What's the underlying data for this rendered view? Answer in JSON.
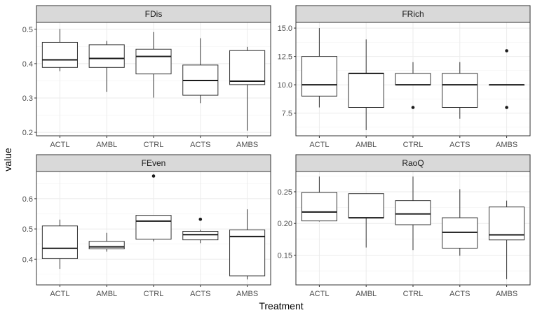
{
  "chart_data": {
    "type": "boxplot",
    "layout": "facet-grid-2x2",
    "xlabel": "Treatment",
    "ylabel": "value",
    "categories": [
      "ACTL",
      "AMBL",
      "CTRL",
      "ACTS",
      "AMBS"
    ],
    "grid": true,
    "panels": [
      {
        "title": "FDis",
        "ylim": [
          0.19,
          0.52
        ],
        "yticks": [
          0.2,
          0.3,
          0.4,
          0.5
        ],
        "ytick_labels": [
          "0.2",
          "0.3",
          "0.4",
          "0.5"
        ],
        "boxes": [
          {
            "category": "ACTL",
            "min": 0.378,
            "q1": 0.389,
            "median": 0.411,
            "q3": 0.462,
            "max": 0.501,
            "outliers": []
          },
          {
            "category": "AMBL",
            "min": 0.318,
            "q1": 0.389,
            "median": 0.415,
            "q3": 0.455,
            "max": 0.466,
            "outliers": []
          },
          {
            "category": "CTRL",
            "min": 0.301,
            "q1": 0.37,
            "median": 0.421,
            "q3": 0.442,
            "max": 0.492,
            "outliers": []
          },
          {
            "category": "ACTS",
            "min": 0.285,
            "q1": 0.308,
            "median": 0.351,
            "q3": 0.396,
            "max": 0.474,
            "outliers": []
          },
          {
            "category": "AMBS",
            "min": 0.205,
            "q1": 0.339,
            "median": 0.349,
            "q3": 0.438,
            "max": 0.449,
            "outliers": []
          }
        ]
      },
      {
        "title": "FRich",
        "ylim": [
          5.5,
          15.5
        ],
        "yticks": [
          7.5,
          10.0,
          12.5,
          15.0
        ],
        "ytick_labels": [
          "7.5",
          "10.0",
          "12.5",
          "15.0"
        ],
        "boxes": [
          {
            "category": "ACTL",
            "min": 8,
            "q1": 9,
            "median": 10,
            "q3": 12.5,
            "max": 15,
            "outliers": []
          },
          {
            "category": "AMBL",
            "min": 6,
            "q1": 8,
            "median": 11,
            "q3": 11,
            "max": 14,
            "outliers": []
          },
          {
            "category": "CTRL",
            "min": 10,
            "q1": 10,
            "median": 10,
            "q3": 11,
            "max": 12,
            "outliers": [
              8
            ]
          },
          {
            "category": "ACTS",
            "min": 7,
            "q1": 8,
            "median": 10,
            "q3": 11,
            "max": 12,
            "outliers": []
          },
          {
            "category": "AMBS",
            "min": 10,
            "q1": 10,
            "median": 10,
            "q3": 10,
            "max": 10,
            "outliers": [
              13,
              8
            ]
          }
        ]
      },
      {
        "title": "FEven",
        "ylim": [
          0.315,
          0.69
        ],
        "yticks": [
          0.4,
          0.5,
          0.6
        ],
        "ytick_labels": [
          "0.4",
          "0.5",
          "0.6"
        ],
        "boxes": [
          {
            "category": "ACTL",
            "min": 0.368,
            "q1": 0.402,
            "median": 0.436,
            "q3": 0.51,
            "max": 0.531,
            "outliers": []
          },
          {
            "category": "AMBL",
            "min": 0.425,
            "q1": 0.434,
            "median": 0.441,
            "q3": 0.459,
            "max": 0.487,
            "outliers": []
          },
          {
            "category": "CTRL",
            "min": 0.459,
            "q1": 0.466,
            "median": 0.526,
            "q3": 0.545,
            "max": 0.545,
            "outliers": [
              0.675
            ]
          },
          {
            "category": "ACTS",
            "min": 0.453,
            "q1": 0.464,
            "median": 0.481,
            "q3": 0.492,
            "max": 0.497,
            "outliers": [
              0.532
            ]
          },
          {
            "category": "AMBS",
            "min": 0.333,
            "q1": 0.345,
            "median": 0.475,
            "q3": 0.497,
            "max": 0.565,
            "outliers": []
          }
        ]
      },
      {
        "title": "RaoQ",
        "ylim": [
          0.103,
          0.282
        ],
        "yticks": [
          0.15,
          0.2,
          0.25
        ],
        "ytick_labels": [
          "0.15",
          "0.20",
          "0.25"
        ],
        "boxes": [
          {
            "category": "ACTL",
            "min": 0.203,
            "q1": 0.204,
            "median": 0.218,
            "q3": 0.249,
            "max": 0.274,
            "outliers": []
          },
          {
            "category": "AMBL",
            "min": 0.162,
            "q1": 0.209,
            "median": 0.209,
            "q3": 0.247,
            "max": 0.247,
            "outliers": []
          },
          {
            "category": "CTRL",
            "min": 0.158,
            "q1": 0.198,
            "median": 0.215,
            "q3": 0.236,
            "max": 0.274,
            "outliers": []
          },
          {
            "category": "ACTS",
            "min": 0.149,
            "q1": 0.161,
            "median": 0.186,
            "q3": 0.209,
            "max": 0.254,
            "outliers": []
          },
          {
            "category": "AMBS",
            "min": 0.112,
            "q1": 0.174,
            "median": 0.182,
            "q3": 0.226,
            "max": 0.236,
            "outliers": []
          }
        ]
      }
    ]
  }
}
